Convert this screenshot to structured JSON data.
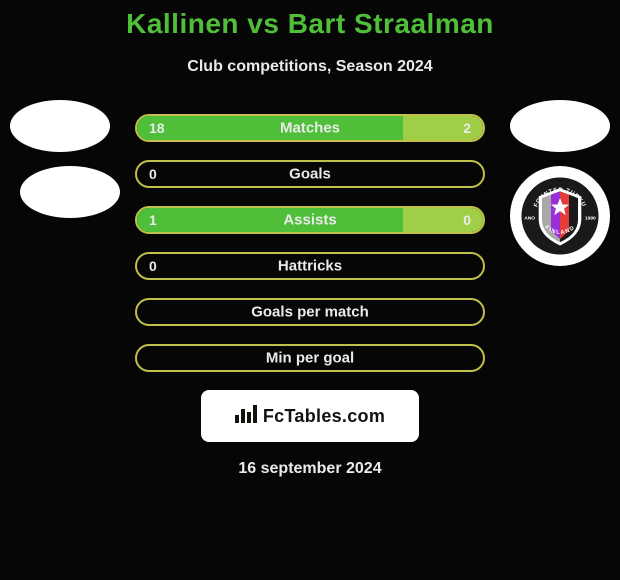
{
  "colors": {
    "background": "#060606",
    "title": "#4fbf3a",
    "subtitle": "#eaeaea",
    "bar_label": "#eaeaea",
    "bar_value": "#eaeaea",
    "bar_left_fill": "#4fbf3a",
    "bar_right_fill": "#a0cf47",
    "bar_border": "#c0c04a",
    "bar_border_width": 2,
    "avatar_placeholder": "#ffffff",
    "logo_placeholder": "#ffffff",
    "logo_right_bg": "#ffffff",
    "badge_bg": "#ffffff",
    "badge_text": "#14120f",
    "date": "#eaeaea"
  },
  "title": "Kallinen vs Bart Straalman",
  "subtitle": "Club competitions, Season 2024",
  "bars": [
    {
      "label": "Matches",
      "left_value": "18",
      "right_value": "2",
      "left_pct": 77,
      "right_pct": 23,
      "show_values": true,
      "empty": false
    },
    {
      "label": "Goals",
      "left_value": "0",
      "right_value": "",
      "left_pct": 0,
      "right_pct": 0,
      "show_values": true,
      "empty": true
    },
    {
      "label": "Assists",
      "left_value": "1",
      "right_value": "0",
      "left_pct": 77,
      "right_pct": 23,
      "show_values": true,
      "empty": false
    },
    {
      "label": "Hattricks",
      "left_value": "0",
      "right_value": "",
      "left_pct": 0,
      "right_pct": 0,
      "show_values": true,
      "empty": true
    },
    {
      "label": "Goals per match",
      "left_value": "",
      "right_value": "",
      "left_pct": 0,
      "right_pct": 0,
      "show_values": false,
      "empty": true
    },
    {
      "label": "Min per goal",
      "left_value": "",
      "right_value": "",
      "left_pct": 0,
      "right_pct": 0,
      "show_values": false,
      "empty": true
    }
  ],
  "badge": {
    "icon": "bar-chart-icon",
    "text": "FcTables.com"
  },
  "date": "16 september 2024",
  "club_badge": {
    "top_text": "FC INTER TURKU",
    "bottom_text": "FINLAND",
    "left_text": "ANO",
    "right_text": "1990",
    "stripe_colors": [
      "#a8a8a8",
      "#9b2fd6",
      "#e63b3b",
      "#1a1a1a"
    ]
  }
}
